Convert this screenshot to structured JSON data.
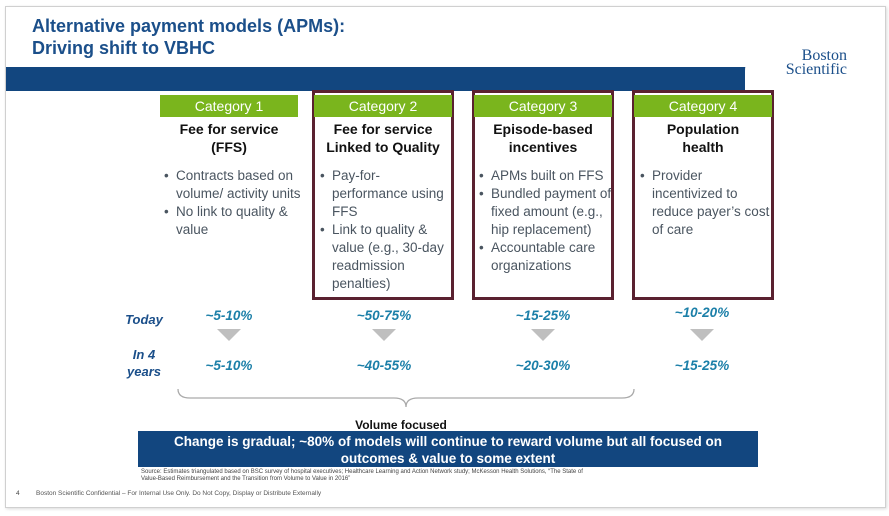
{
  "header": {
    "title_line1": "Alternative payment models (APMs):",
    "title_line2": "Driving shift to VBHC",
    "logo_line1": "Boston",
    "logo_line2": "Scientific"
  },
  "colors": {
    "header_blue": "#12467f",
    "category_green": "#7ab51d",
    "highlight_border": "#5a2130",
    "percent_blue": "#1b7fa8"
  },
  "categories": [
    {
      "label": "Category 1",
      "title_line1": "Fee for service",
      "title_line2": "(FFS)",
      "bullets": [
        "Contracts based on volume/ activity units",
        "No link to quality & value"
      ],
      "today": "~5-10%",
      "in4": "~5-10%"
    },
    {
      "label": "Category 2",
      "title_line1": "Fee for service",
      "title_line2": "Linked to Quality",
      "bullets": [
        "Pay-for-performance using FFS",
        "Link to quality & value (e.g., 30-day readmission penalties)"
      ],
      "today": "~50-75%",
      "in4": "~40-55%"
    },
    {
      "label": "Category 3",
      "title_line1": "Episode-based",
      "title_line2": "incentives",
      "bullets": [
        "APMs built on FFS",
        "Bundled payment of fixed amount (e.g., hip replacement)",
        "Accountable care organizations"
      ],
      "today": "~15-25%",
      "in4": "~20-30%"
    },
    {
      "label": "Category 4",
      "title_line1": "Population",
      "title_line2": "health",
      "bullets": [
        "Provider incentivized to reduce payer’s cost of care"
      ],
      "today": "~10-20%",
      "in4": "~15-25%"
    }
  ],
  "rows": {
    "today": "Today",
    "in4_line1": "In 4",
    "in4_line2": "years"
  },
  "volume_label": "Volume focused",
  "conclusion_line1": "Change is gradual; ~80% of models will continue to reward volume but all focused on",
  "conclusion_line2": "outcomes & value to some extent",
  "source_line1": "Source: Estimates triangulated based on BSC survey of hospital executives; Healthcare Learning and Action Network study; McKesson Health Solutions, “The State of",
  "source_line2": "Value-Based Reimbursement and the Transition from Volume to Value in 2016”",
  "footer": {
    "page_number": "4",
    "confidential": "Boston Scientific Confidential – For Internal Use Only.  Do Not Copy, Display or Distribute Externally"
  }
}
